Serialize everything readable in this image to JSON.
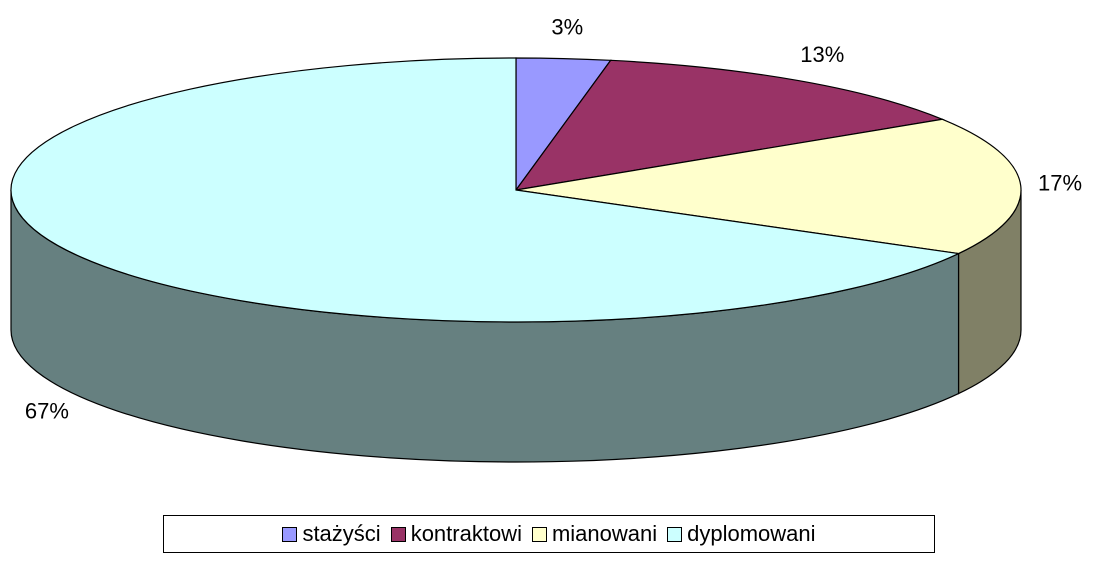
{
  "chart_data": {
    "type": "pie",
    "categories": [
      "stażyści",
      "kontraktowi",
      "mianowani",
      "dyplomowani"
    ],
    "values": [
      3,
      13,
      17,
      67
    ],
    "value_labels": [
      "3%",
      "13%",
      "17%",
      "67%"
    ],
    "colors": [
      "#9999ff",
      "#993366",
      "#ffffcc",
      "#ccffff"
    ],
    "legend": "bottom"
  }
}
